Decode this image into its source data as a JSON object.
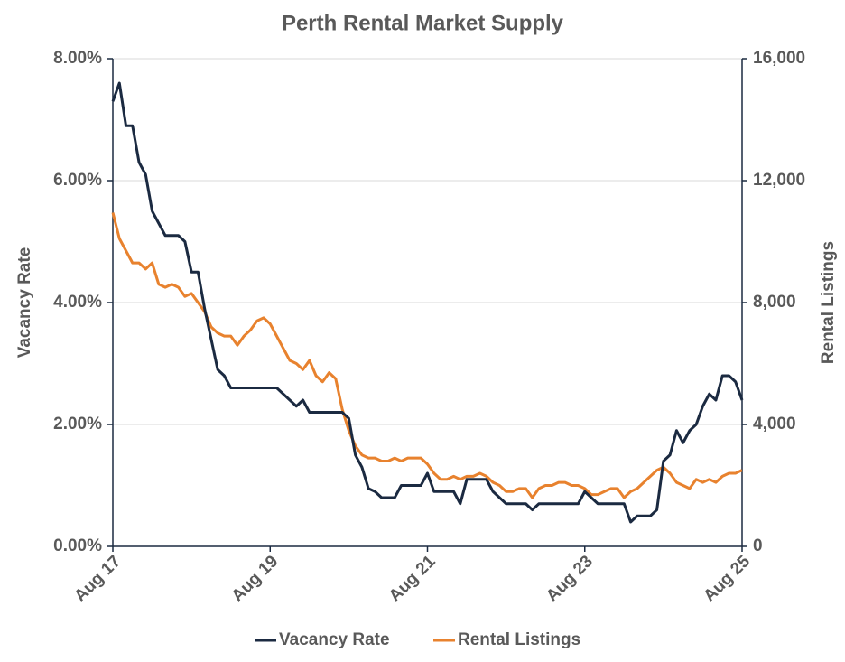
{
  "chart_data": {
    "type": "line",
    "title": "Perth Rental Market Supply",
    "ylabel": "Vacancy Rate",
    "y2label": "Rental Listings",
    "x": [
      "Aug 17",
      "Sep 17",
      "Oct 17",
      "Nov 17",
      "Dec 17",
      "Jan 18",
      "Feb 18",
      "Mar 18",
      "Apr 18",
      "May 18",
      "Jun 18",
      "Jul 18",
      "Aug 18",
      "Sep 18",
      "Oct 18",
      "Nov 18",
      "Dec 18",
      "Jan 19",
      "Feb 19",
      "Mar 19",
      "Apr 19",
      "May 19",
      "Jun 19",
      "Jul 19",
      "Aug 19",
      "Sep 19",
      "Oct 19",
      "Nov 19",
      "Dec 19",
      "Jan 20",
      "Feb 20",
      "Mar 20",
      "Apr 20",
      "May 20",
      "Jun 20",
      "Jul 20",
      "Aug 20",
      "Sep 20",
      "Oct 20",
      "Nov 20",
      "Dec 20",
      "Jan 21",
      "Feb 21",
      "Mar 21",
      "Apr 21",
      "May 21",
      "Jun 21",
      "Jul 21",
      "Aug 21",
      "Sep 21",
      "Oct 21",
      "Nov 21",
      "Dec 21",
      "Jan 22",
      "Feb 22",
      "Mar 22",
      "Apr 22",
      "May 22",
      "Jun 22",
      "Jul 22",
      "Aug 22",
      "Sep 22",
      "Oct 22",
      "Nov 22",
      "Dec 22",
      "Jan 23",
      "Feb 23",
      "Mar 23",
      "Apr 23",
      "May 23",
      "Jun 23",
      "Jul 23",
      "Aug 23",
      "Sep 23",
      "Oct 23",
      "Nov 23",
      "Dec 23",
      "Jan 24",
      "Feb 24",
      "Mar 24",
      "Apr 24",
      "May 24",
      "Jun 24",
      "Jul 24",
      "Aug 24",
      "Sep 24",
      "Oct 24",
      "Nov 24",
      "Dec 24",
      "Jan 25",
      "Feb 25",
      "Mar 25",
      "Apr 25",
      "May 25",
      "Jun 25",
      "Jul 25",
      "Aug 25"
    ],
    "xticks": [
      "Aug 17",
      "Aug 19",
      "Aug 21",
      "Aug 23",
      "Aug 25"
    ],
    "ylim": [
      0,
      8
    ],
    "yticks": [
      {
        "value": 0,
        "label": "0.00%"
      },
      {
        "value": 2,
        "label": "2.00%"
      },
      {
        "value": 4,
        "label": "4.00%"
      },
      {
        "value": 6,
        "label": "6.00%"
      },
      {
        "value": 8,
        "label": "8.00%"
      }
    ],
    "y2lim": [
      0,
      16000
    ],
    "y2ticks": [
      0,
      {
        "value": 4000,
        "label": "4,000"
      },
      {
        "value": 8000,
        "label": "8,000"
      },
      {
        "value": 12000,
        "label": "12,000"
      },
      {
        "value": 16000,
        "label": "16,000"
      }
    ],
    "grid": true,
    "legend": "bottom",
    "series": [
      {
        "name": "Vacancy Rate",
        "color": "#1b2a41",
        "values": [
          7.3,
          7.6,
          6.9,
          6.9,
          6.3,
          6.1,
          5.5,
          5.3,
          5.1,
          5.1,
          5.1,
          5.0,
          4.5,
          4.5,
          3.9,
          3.4,
          2.9,
          2.8,
          2.6,
          2.6,
          2.6,
          2.6,
          2.6,
          2.6,
          2.6,
          2.6,
          2.5,
          2.4,
          2.3,
          2.4,
          2.2,
          2.2,
          2.2,
          2.2,
          2.2,
          2.2,
          2.1,
          1.5,
          1.3,
          0.95,
          0.9,
          0.8,
          0.8,
          0.8,
          1.0,
          1.0,
          1.0,
          1.0,
          1.2,
          0.9,
          0.9,
          0.9,
          0.9,
          0.7,
          1.1,
          1.1,
          1.1,
          1.1,
          0.9,
          0.8,
          0.7,
          0.7,
          0.7,
          0.7,
          0.6,
          0.7,
          0.7,
          0.7,
          0.7,
          0.7,
          0.7,
          0.7,
          0.9,
          0.8,
          0.7,
          0.7,
          0.7,
          0.7,
          0.7,
          0.4,
          0.5,
          0.5,
          0.5,
          0.6,
          1.4,
          1.5,
          1.9,
          1.7,
          1.9,
          2.0,
          2.3,
          2.5,
          2.4,
          2.8,
          2.8,
          2.7,
          2.4
        ]
      },
      {
        "name": "Rental Listings",
        "color": "#e8822e",
        "axis": "y2",
        "values": [
          10950,
          10100,
          9700,
          9300,
          9300,
          9100,
          9300,
          8600,
          8500,
          8600,
          8500,
          8200,
          8300,
          8000,
          7700,
          7200,
          7000,
          6900,
          6900,
          6600,
          6900,
          7100,
          7400,
          7500,
          7300,
          6900,
          6500,
          6100,
          6000,
          5800,
          6100,
          5600,
          5400,
          5700,
          5500,
          4500,
          3800,
          3300,
          3000,
          2900,
          2900,
          2800,
          2800,
          2900,
          2800,
          2900,
          2900,
          2900,
          2700,
          2400,
          2200,
          2200,
          2300,
          2200,
          2300,
          2300,
          2400,
          2300,
          2100,
          2000,
          1800,
          1800,
          1900,
          1900,
          1600,
          1900,
          2000,
          2000,
          2100,
          2100,
          2000,
          2000,
          1900,
          1700,
          1700,
          1800,
          1900,
          1900,
          1600,
          1800,
          1900,
          2100,
          2300,
          2500,
          2600,
          2400,
          2100,
          2000,
          1900,
          2200,
          2100,
          2200,
          2100,
          2300,
          2400,
          2400,
          2500
        ]
      }
    ]
  }
}
